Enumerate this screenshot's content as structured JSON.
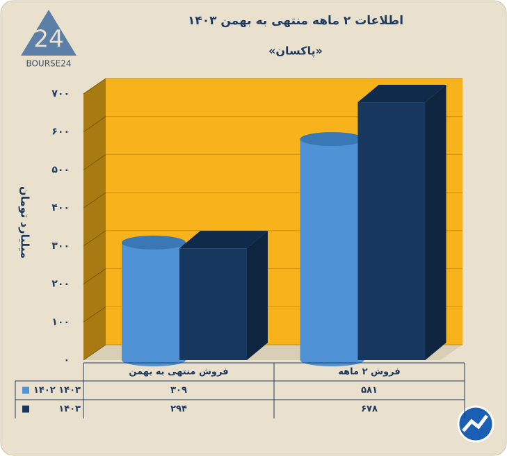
{
  "chart_data": {
    "type": "bar3d",
    "title": "اطلاعات ۲ ماهه منتهی به بهمن ۱۴۰۳",
    "subtitle": "«پاکسان»",
    "y_label": "میلیارد تومان",
    "logo": "BOURSE24",
    "categories": [
      "فروش منتهی به  بهمن",
      "فروش ۲ ماهه"
    ],
    "series": [
      {
        "name": "۱۴۰۲ ۱۴۰۳",
        "color": "#4f93d6",
        "values": [
          309,
          581
        ],
        "value_labels": [
          "۳۰۹",
          "۵۸۱"
        ]
      },
      {
        "name": "۱۴۰۳",
        "color": "#17375e",
        "values": [
          294,
          678
        ],
        "value_labels": [
          "۲۹۴",
          "۶۷۸"
        ]
      }
    ],
    "ylim": [
      0,
      700
    ],
    "yticks": [
      {
        "value": 0,
        "label": "۰"
      },
      {
        "value": 100,
        "label": "۱۰۰"
      },
      {
        "value": 200,
        "label": "۲۰۰"
      },
      {
        "value": 300,
        "label": "۳۰۰"
      },
      {
        "value": 400,
        "label": "۴۰۰"
      },
      {
        "value": 500,
        "label": "۵۰۰"
      },
      {
        "value": 600,
        "label": "۶۰۰"
      },
      {
        "value": 700,
        "label": "۷۰۰"
      }
    ],
    "grid": true
  }
}
